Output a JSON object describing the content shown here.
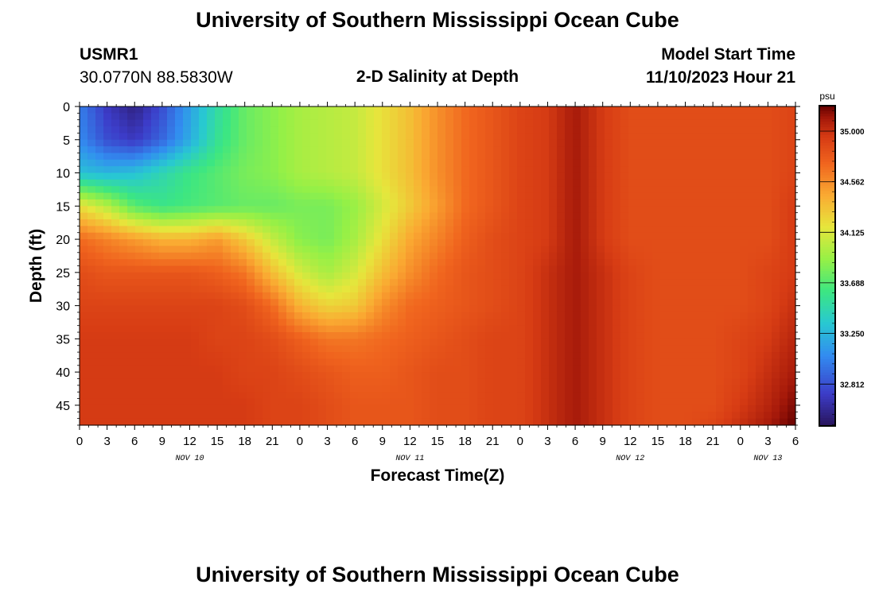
{
  "page_title": "University of Southern Mississippi Ocean Cube",
  "footer_title": "University of Southern Mississippi Ocean Cube",
  "station": {
    "id": "USMR1",
    "location": "30.0770N  88.5830W"
  },
  "model_start": {
    "label": "Model Start Time",
    "value": "11/10/2023 Hour 21"
  },
  "chart_data": {
    "type": "heatmap",
    "title": "2-D Salinity at Depth",
    "xlabel": "Forecast Time(Z)",
    "ylabel": "Depth (ft)",
    "units": "psu",
    "x_hours_from_start": [
      0,
      78
    ],
    "x_tick_labels": [
      "0",
      "3",
      "6",
      "9",
      "12",
      "15",
      "18",
      "21",
      "0",
      "3",
      "6",
      "9",
      "12",
      "15",
      "18",
      "21",
      "0",
      "3",
      "6",
      "9",
      "12",
      "15",
      "18",
      "21",
      "0",
      "3",
      "6"
    ],
    "day_labels": [
      {
        "label": "NOV 10",
        "hour": 12
      },
      {
        "label": "NOV 11",
        "hour": 36
      },
      {
        "label": "NOV 12",
        "hour": 60
      },
      {
        "label": "NOV 13",
        "hour": 75
      }
    ],
    "ylim": [
      0,
      48
    ],
    "y_ticks": [
      0,
      5,
      10,
      15,
      20,
      25,
      30,
      35,
      40,
      45
    ],
    "colorbar": {
      "min": 32.45,
      "max": 35.22,
      "tick_values": [
        32.812,
        33.25,
        33.688,
        34.125,
        34.562,
        35.0
      ],
      "tick_labels": [
        "32.812",
        "33.250",
        "33.688",
        "34.125",
        "34.562",
        "35.000"
      ]
    },
    "depths_ft": [
      0,
      5,
      10,
      15,
      20,
      25,
      30,
      35,
      40,
      45,
      48
    ],
    "times_h": [
      0,
      3,
      6,
      9,
      12,
      15,
      18,
      21,
      24,
      27,
      30,
      33,
      36,
      39,
      42,
      45,
      48,
      51,
      54,
      57,
      60,
      63,
      66,
      69,
      72,
      75,
      78
    ],
    "salinity_psu": [
      [
        33.0,
        32.7,
        32.55,
        32.8,
        33.15,
        33.5,
        33.75,
        33.85,
        33.95,
        34.0,
        34.05,
        34.2,
        34.35,
        34.55,
        34.7,
        34.8,
        34.9,
        34.95,
        35.1,
        34.95,
        34.85,
        34.85,
        34.85,
        34.85,
        34.85,
        34.85,
        34.9
      ],
      [
        33.05,
        32.8,
        32.7,
        32.9,
        33.2,
        33.55,
        33.75,
        33.85,
        33.95,
        34.0,
        34.05,
        34.2,
        34.35,
        34.55,
        34.7,
        34.8,
        34.9,
        34.95,
        35.1,
        34.95,
        34.85,
        34.85,
        34.85,
        34.85,
        34.85,
        34.85,
        34.9
      ],
      [
        33.3,
        33.25,
        33.3,
        33.45,
        33.6,
        33.7,
        33.8,
        33.85,
        33.95,
        34.0,
        34.05,
        34.2,
        34.35,
        34.55,
        34.7,
        34.8,
        34.9,
        34.95,
        35.1,
        34.95,
        34.85,
        34.85,
        34.85,
        34.85,
        34.85,
        34.85,
        34.9
      ],
      [
        34.2,
        34.0,
        33.7,
        33.6,
        33.65,
        33.7,
        33.75,
        33.75,
        33.8,
        33.8,
        33.9,
        34.1,
        34.3,
        34.5,
        34.7,
        34.8,
        34.9,
        34.95,
        35.1,
        34.95,
        34.85,
        34.85,
        34.85,
        34.85,
        34.85,
        34.85,
        34.95
      ],
      [
        34.7,
        34.6,
        34.5,
        34.4,
        34.4,
        34.5,
        34.3,
        34.05,
        33.85,
        33.8,
        33.95,
        34.2,
        34.45,
        34.6,
        34.75,
        34.85,
        34.9,
        34.95,
        35.1,
        34.95,
        34.85,
        34.85,
        34.85,
        34.85,
        34.85,
        34.85,
        34.95
      ],
      [
        34.85,
        34.8,
        34.8,
        34.8,
        34.8,
        34.75,
        34.65,
        34.35,
        34.1,
        33.95,
        34.1,
        34.35,
        34.55,
        34.7,
        34.8,
        34.85,
        34.9,
        35.0,
        35.1,
        35.0,
        34.9,
        34.85,
        34.85,
        34.85,
        34.85,
        34.9,
        34.95
      ],
      [
        34.9,
        34.9,
        34.9,
        34.9,
        34.9,
        34.9,
        34.85,
        34.7,
        34.4,
        34.25,
        34.3,
        34.55,
        34.7,
        34.75,
        34.8,
        34.85,
        34.9,
        35.0,
        35.1,
        35.0,
        34.9,
        34.85,
        34.85,
        34.85,
        34.85,
        34.9,
        35.0
      ],
      [
        34.95,
        34.95,
        34.95,
        34.95,
        34.95,
        34.9,
        34.9,
        34.85,
        34.75,
        34.65,
        34.65,
        34.7,
        34.75,
        34.8,
        34.85,
        34.9,
        34.9,
        35.0,
        35.1,
        35.0,
        34.9,
        34.85,
        34.85,
        34.85,
        34.9,
        34.95,
        35.05
      ],
      [
        34.95,
        34.95,
        34.95,
        34.95,
        34.95,
        34.95,
        34.9,
        34.9,
        34.85,
        34.8,
        34.75,
        34.75,
        34.8,
        34.85,
        34.85,
        34.9,
        34.9,
        35.0,
        35.1,
        35.0,
        34.9,
        34.85,
        34.85,
        34.85,
        34.9,
        35.0,
        35.1
      ],
      [
        34.95,
        34.95,
        34.95,
        34.95,
        34.95,
        34.95,
        34.95,
        34.9,
        34.9,
        34.85,
        34.8,
        34.8,
        34.8,
        34.85,
        34.85,
        34.9,
        34.9,
        35.0,
        35.1,
        35.0,
        34.9,
        34.85,
        34.85,
        34.85,
        34.95,
        35.05,
        35.18
      ],
      [
        34.95,
        34.95,
        34.95,
        34.95,
        34.95,
        34.95,
        34.95,
        34.9,
        34.9,
        34.85,
        34.8,
        34.8,
        34.8,
        34.85,
        34.85,
        34.9,
        34.9,
        35.0,
        35.1,
        35.0,
        34.9,
        34.85,
        34.85,
        34.9,
        35.0,
        35.1,
        35.22
      ]
    ]
  }
}
